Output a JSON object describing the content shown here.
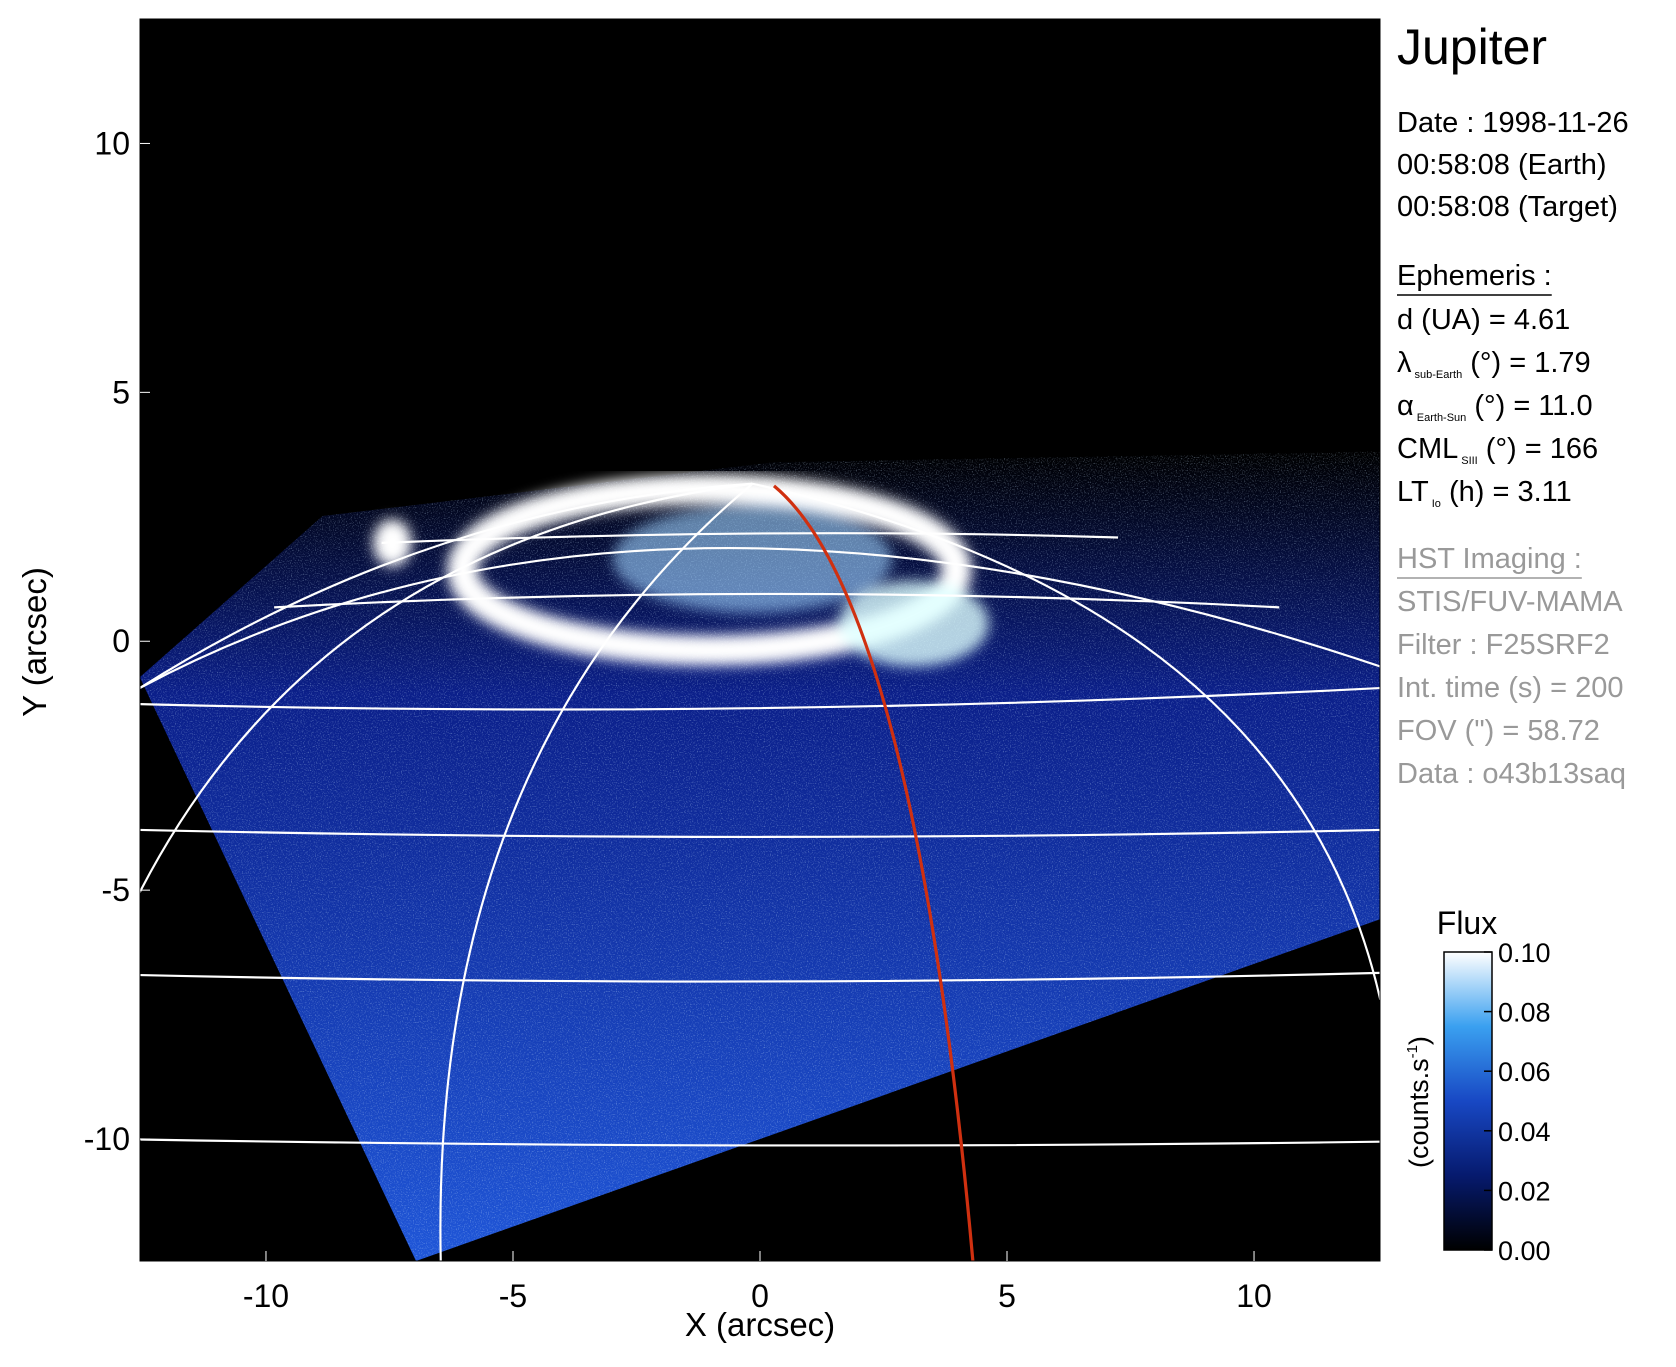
{
  "chart_data": {
    "type": "image",
    "xlabel": "X (arcsec)",
    "ylabel": "Y (arcsec)",
    "xlim": [
      -12.55,
      12.55
    ],
    "ylim": [
      -12.45,
      12.5
    ],
    "xticks": [
      -10,
      -5,
      0,
      5,
      10
    ],
    "yticks": [
      -10,
      -5,
      0,
      5,
      10
    ],
    "colorbar": {
      "title": "Flux",
      "label": {
        "text": "(counts.s",
        "sup": "-1",
        "end": ")"
      },
      "lim": [
        0,
        0.1
      ],
      "ticks": [
        {
          "value": 0,
          "label": "0.00"
        },
        0.02,
        0.04,
        0.06,
        0.08,
        {
          "value": 0.1,
          "label": "0.10"
        }
      ]
    },
    "info": {
      "title": "Jupiter",
      "date_lines": [
        "Date : 1998-11-26",
        "00:58:08 (Earth)",
        "00:58:08 (Target)"
      ],
      "ephemeris_heading": "Ephemeris :",
      "ephemeris": [
        {
          "pre": "d (UA)    = 4.61"
        },
        {
          "pre": "λ",
          "sub": "sub-Earth",
          "post": " (°) = 1.79"
        },
        {
          "pre": "α",
          "sub": "Earth-Sun",
          "post": " (°) = 11.0"
        },
        {
          "pre": "CML",
          "sub": "SIII",
          "post": " (°) = 166"
        },
        {
          "pre": "LT",
          "sub": "Io",
          "post": " (h) = 3.11"
        }
      ],
      "imaging_heading": "HST Imaging :",
      "imaging": [
        "STIS/FUV-MAMA",
        "Filter : F25SRF2",
        "Int. time (s) = 200",
        "FOV (\") = 58.72",
        "Data : o43b13saq"
      ]
    }
  }
}
